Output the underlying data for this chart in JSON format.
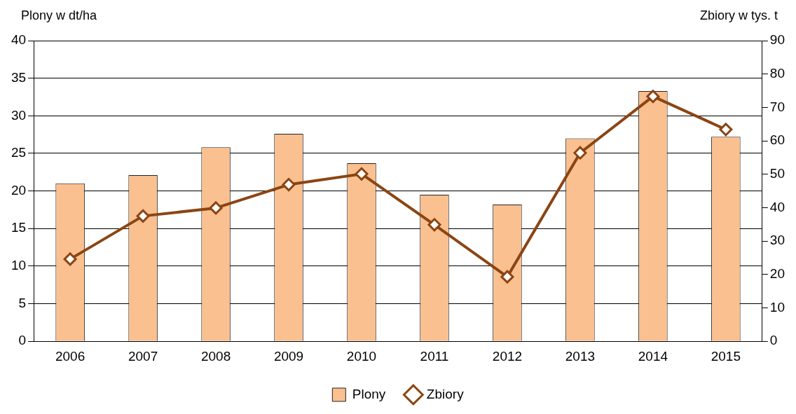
{
  "chart_data": {
    "type": "bar",
    "ylabel": "Plony w dt/ha",
    "y2label": "Zbiory w tys. t",
    "categories": [
      "2006",
      "2007",
      "2008",
      "2009",
      "2010",
      "2011",
      "2012",
      "2013",
      "2014",
      "2015"
    ],
    "series": [
      {
        "name": "Plony",
        "color": "#fac090",
        "values": [
          21.0,
          22.1,
          25.8,
          27.6,
          23.7,
          19.5,
          18.2,
          27.0,
          33.3,
          27.2
        ]
      },
      {
        "name": "Zbiory",
        "type": "line",
        "axis": "y2",
        "color": "#8b4513",
        "marker": "diamond",
        "values": [
          24.6,
          37.5,
          39.9,
          46.9,
          50.1,
          34.9,
          19.3,
          56.4,
          73.3,
          63.4
        ]
      }
    ],
    "ylim": [
      0,
      40
    ],
    "yticks": [
      0,
      5,
      10,
      15,
      20,
      25,
      30,
      35,
      40
    ],
    "y2lim": [
      0,
      90
    ],
    "y2ticks": [
      0,
      10,
      20,
      30,
      40,
      50,
      60,
      70,
      80,
      90
    ],
    "grid": "y",
    "legend": "bottom"
  }
}
